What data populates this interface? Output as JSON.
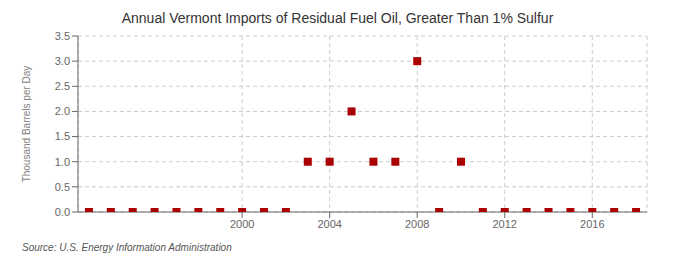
{
  "chart_data": {
    "type": "scatter",
    "title": "Annual Vermont Imports of Residual Fuel Oil, Greater Than 1% Sulfur",
    "ylabel": "Thousand Barrels per Day",
    "annotation": "Source: U.S. Energy Information Administration",
    "x": [
      1993,
      1994,
      1995,
      1996,
      1997,
      1998,
      1999,
      2000,
      2001,
      2002,
      2003,
      2004,
      2005,
      2006,
      2007,
      2008,
      2009,
      2010,
      2011,
      2012,
      2013,
      2014,
      2015,
      2016,
      2017,
      2018
    ],
    "values": [
      0,
      0,
      0,
      0,
      0,
      0,
      0,
      0,
      0,
      0,
      1.0,
      1.0,
      2.0,
      1.0,
      1.0,
      3.0,
      0,
      1.0,
      0,
      0,
      0,
      0,
      0,
      0,
      0,
      0
    ],
    "color": "#aa0000",
    "marker": "square",
    "grid": true,
    "xlim": [
      1992.5,
      2018.5
    ],
    "xticks": [
      2000,
      2004,
      2008,
      2012,
      2016
    ],
    "ylim": [
      0,
      3.5
    ],
    "yticks": [
      {
        "value": 0,
        "label": "0.0"
      },
      0.5,
      {
        "value": 1,
        "label": "1.0"
      },
      1.5,
      {
        "value": 2,
        "label": "2.0"
      },
      2.5,
      {
        "value": 3,
        "label": "3.0"
      },
      3.5
    ]
  }
}
